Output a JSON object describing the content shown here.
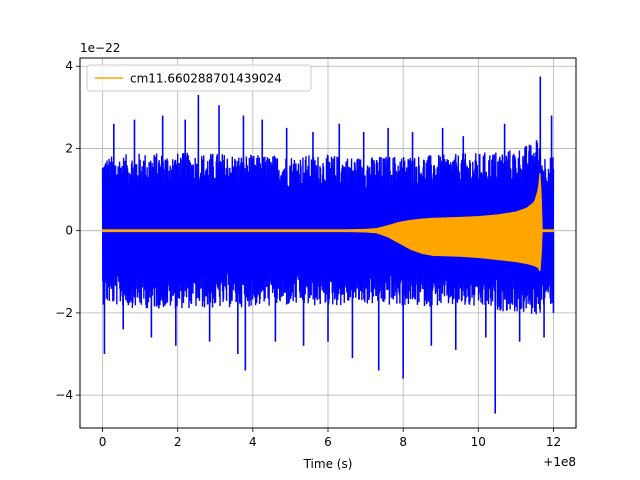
{
  "chart_data": {
    "type": "line",
    "title": "",
    "xlabel": "Time (s)",
    "ylabel": "",
    "x_offset_label": "+1e8",
    "y_scale_label": "1e−22",
    "xlim": [
      -0.6,
      12.6
    ],
    "ylim": [
      -4.8,
      4.2
    ],
    "x_ticks": [
      0,
      2,
      4,
      6,
      8,
      10,
      12
    ],
    "x_tick_labels": [
      "0",
      "2",
      "4",
      "6",
      "8",
      "10",
      "12"
    ],
    "y_ticks": [
      -4,
      -2,
      0,
      2,
      4
    ],
    "y_tick_labels": [
      "−4",
      "−2",
      "0",
      "2",
      "4"
    ],
    "grid": true,
    "legend_position": "top-left",
    "colors": {
      "noise": "#0000ff",
      "signal": "#ffa500",
      "grid": "#b0b0b0"
    },
    "series": [
      {
        "color": "#0000ff",
        "x_range": [
          0,
          12
        ],
        "envelope": {
          "x": [
            0,
            1,
            2,
            3,
            4,
            5,
            6,
            7,
            8,
            9,
            10,
            11,
            11.6,
            11.7,
            12
          ],
          "typical_max": [
            1.8,
            1.9,
            1.9,
            1.9,
            1.85,
            1.85,
            1.85,
            1.8,
            1.85,
            1.85,
            1.9,
            2.0,
            2.2,
            1.9,
            1.8
          ],
          "typical_min": [
            -1.8,
            -1.9,
            -1.9,
            -1.9,
            -1.85,
            -1.85,
            -1.85,
            -1.8,
            -1.85,
            -1.85,
            -1.9,
            -2.0,
            -2.1,
            -1.9,
            -1.8
          ]
        },
        "spikes": [
          [
            0.05,
            -3.0
          ],
          [
            0.3,
            2.6
          ],
          [
            0.55,
            -2.4
          ],
          [
            0.85,
            2.7
          ],
          [
            1.3,
            -2.6
          ],
          [
            1.6,
            2.8
          ],
          [
            1.95,
            -2.8
          ],
          [
            2.2,
            2.7
          ],
          [
            2.55,
            3.3
          ],
          [
            2.85,
            -2.7
          ],
          [
            3.1,
            3.05
          ],
          [
            3.6,
            -3.0
          ],
          [
            3.75,
            2.8
          ],
          [
            3.8,
            -3.4
          ],
          [
            4.25,
            2.7
          ],
          [
            4.6,
            -2.7
          ],
          [
            4.9,
            2.5
          ],
          [
            5.35,
            -2.8
          ],
          [
            5.6,
            2.4
          ],
          [
            6.0,
            -2.7
          ],
          [
            6.3,
            2.6
          ],
          [
            6.65,
            -3.1
          ],
          [
            6.95,
            2.4
          ],
          [
            7.35,
            -3.4
          ],
          [
            7.6,
            2.5
          ],
          [
            8.0,
            -3.6
          ],
          [
            8.25,
            2.4
          ],
          [
            8.75,
            -2.8
          ],
          [
            9.05,
            2.5
          ],
          [
            9.4,
            -2.9
          ],
          [
            9.6,
            2.3
          ],
          [
            10.2,
            -2.6
          ],
          [
            10.45,
            -4.45
          ],
          [
            10.7,
            2.6
          ],
          [
            11.1,
            -2.7
          ],
          [
            11.55,
            2.2
          ],
          [
            11.65,
            3.75
          ],
          [
            11.75,
            -2.6
          ],
          [
            11.95,
            2.8
          ],
          [
            12.0,
            -2.0
          ]
        ]
      },
      {
        "name": "cm11.660288701439024",
        "color": "#ffa500",
        "x_range": [
          0,
          12
        ],
        "envelope": {
          "x": [
            0,
            6.5,
            7.0,
            7.3,
            7.6,
            7.9,
            8.2,
            8.5,
            8.8,
            9.5,
            10.0,
            10.5,
            11.0,
            11.3,
            11.5,
            11.6,
            11.65,
            11.7,
            12.0
          ],
          "upper": [
            0.02,
            0.02,
            0.03,
            0.05,
            0.12,
            0.2,
            0.25,
            0.28,
            0.3,
            0.32,
            0.34,
            0.38,
            0.45,
            0.55,
            0.7,
            1.0,
            1.5,
            0.02,
            0.02
          ],
          "lower": [
            -0.02,
            -0.02,
            -0.03,
            -0.05,
            -0.15,
            -0.3,
            -0.45,
            -0.55,
            -0.6,
            -0.62,
            -0.65,
            -0.7,
            -0.75,
            -0.8,
            -0.85,
            -0.9,
            -1.0,
            -0.02,
            -0.02
          ]
        }
      }
    ]
  }
}
